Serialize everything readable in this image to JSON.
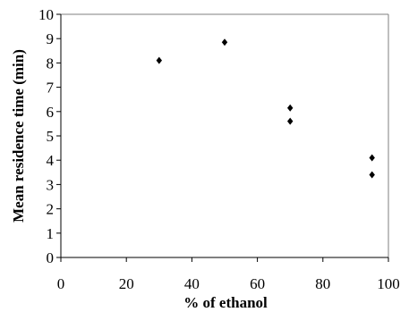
{
  "chart_data": {
    "type": "scatter",
    "title": "",
    "xlabel": "% of ethanol",
    "ylabel": "Mean residence time (min)",
    "xlim": [
      0,
      100
    ],
    "ylim": [
      0,
      10
    ],
    "x_ticks": [
      "0",
      "20",
      "40",
      "60",
      "80",
      "100"
    ],
    "y_ticks": [
      "0",
      "1",
      "2",
      "3",
      "4",
      "5",
      "6",
      "7",
      "8",
      "9",
      "10"
    ],
    "grid": false,
    "legend": "none",
    "marker": "diamond",
    "marker_color": "#000000",
    "series": [
      {
        "points": [
          {
            "x": 30,
            "y": 8.1
          },
          {
            "x": 50,
            "y": 8.85
          },
          {
            "x": 70,
            "y": 6.15
          },
          {
            "x": 70,
            "y": 5.6
          },
          {
            "x": 95,
            "y": 4.1
          },
          {
            "x": 95,
            "y": 3.4
          }
        ]
      }
    ]
  }
}
